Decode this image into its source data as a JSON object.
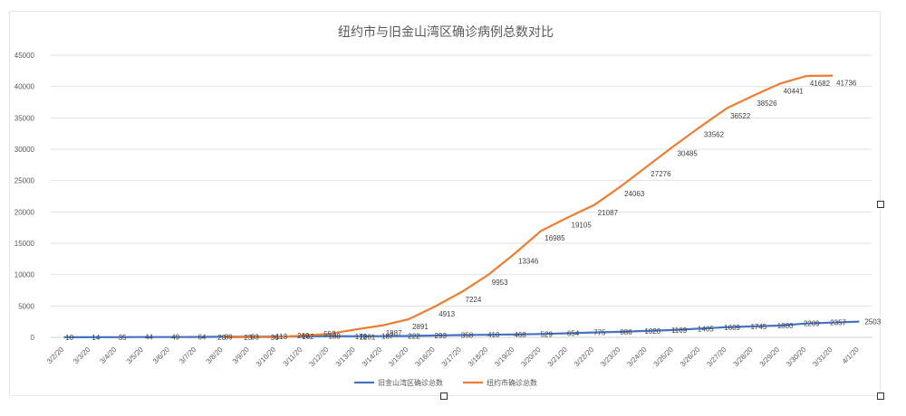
{
  "chart_data": {
    "type": "line",
    "title": "纽约市与旧金山湾区确诊病例总数对比",
    "xlabel": "",
    "ylabel": "",
    "ylim": [
      0,
      45000
    ],
    "yticks": [
      "0",
      "5000",
      "10000",
      "15000",
      "20000",
      "25000",
      "30000",
      "35000",
      "40000",
      "45000"
    ],
    "grid": true,
    "legend_position": "bottom",
    "categories": [
      "3/2/20",
      "3/3/20",
      "3/4/20",
      "3/5/20",
      "3/6/20",
      "3/7/20",
      "3/8/20",
      "3/9/20",
      "3/10/20",
      "3/11/20",
      "3/12/20",
      "3/13/20",
      "3/14/20",
      "3/15/20",
      "3/16/20",
      "3/17/20",
      "3/18/20",
      "3/19/20",
      "3/20/20",
      "3/21/20",
      "3/22/20",
      "3/23/20",
      "3/24/20",
      "3/25/20",
      "3/26/20",
      "3/27/20",
      "3/28/20",
      "3/29/20",
      "3/30/20",
      "3/31/20",
      "4/1/20"
    ],
    "series": [
      {
        "name": "旧金山湾区确诊总数",
        "color": "#4472C4",
        "values": [
          10,
          14,
          35,
          44,
          49,
          64,
          89,
          93,
          113,
          162,
          188,
          178,
          187,
          222,
          293,
          358,
          410,
          468,
          529,
          654,
          775,
          886,
          1020,
          1169,
          1405,
          1609,
          1745,
          1880,
          2209,
          2357,
          2503
        ],
        "labels": [
          "10",
          "14",
          "35",
          "44",
          "49",
          "64",
          "89",
          "93",
          "113",
          "162",
          "188",
          "178",
          "187",
          "222",
          "293",
          "358",
          "410",
          "468",
          "529",
          "654",
          "775",
          "886",
          "1020",
          "1169",
          "1405",
          "1609",
          "1745",
          "1880",
          "2209",
          "2357",
          "2503"
        ]
      },
      {
        "name": "纽约市确诊总数",
        "color": "#ED7D31",
        "values": [
          null,
          null,
          null,
          null,
          null,
          null,
          20,
          23,
          36,
          269,
          553,
          1261,
          1887,
          2891,
          4913,
          7224,
          9953,
          13346,
          16985,
          19105,
          21087,
          24063,
          27276,
          30485,
          33562,
          36522,
          38526,
          40441,
          41682,
          41736,
          null
        ],
        "labels": [
          null,
          null,
          null,
          null,
          null,
          null,
          "20",
          "23",
          "36",
          "269",
          "553",
          "1261",
          "1887",
          "2891",
          "4913",
          "7224",
          "9953",
          "13346",
          "16985",
          "19105",
          "21087",
          "24063",
          "27276",
          "30485",
          "33562",
          "36522",
          "38526",
          "40441",
          "41682",
          "41736",
          null
        ]
      }
    ]
  }
}
